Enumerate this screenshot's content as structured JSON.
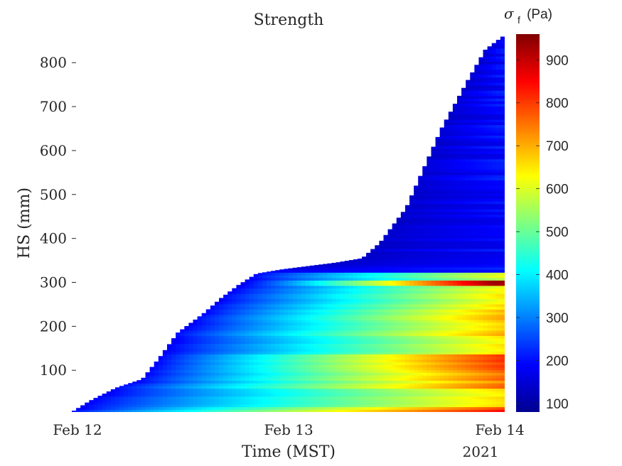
{
  "chart_data": {
    "type": "heatmap",
    "title": "Strength",
    "xlabel": "Time (MST)",
    "ylabel": "HS (mm)",
    "x_ticks": [
      "Feb 12",
      "Feb 13",
      "Feb 14"
    ],
    "x_secondary_label": "2021",
    "x_range_days": [
      0,
      2.05
    ],
    "ylim": [
      5,
      865
    ],
    "y_ticks": [
      100,
      200,
      300,
      400,
      500,
      600,
      700,
      800
    ],
    "colorbar": {
      "label_symbol": "σ",
      "label_subscript": "f",
      "label_units": "(Pa)",
      "range": [
        80,
        960
      ],
      "ticks": [
        100,
        200,
        300,
        400,
        500,
        600,
        700,
        800,
        900
      ],
      "colormap": "jet"
    },
    "snow_height_profile": [
      {
        "t": "Feb 12 00:00",
        "hs": 5
      },
      {
        "t": "Feb 12 02:00",
        "hs": 30
      },
      {
        "t": "Feb 12 05:00",
        "hs": 60
      },
      {
        "t": "Feb 12 08:00",
        "hs": 80
      },
      {
        "t": "Feb 12 10:00",
        "hs": 130
      },
      {
        "t": "Feb 12 12:00",
        "hs": 185
      },
      {
        "t": "Feb 12 15:00",
        "hs": 230
      },
      {
        "t": "Feb 12 17:00",
        "hs": 265
      },
      {
        "t": "Feb 12 19:00",
        "hs": 295
      },
      {
        "t": "Feb 12 21:00",
        "hs": 320
      },
      {
        "t": "Feb 13 00:00",
        "hs": 330
      },
      {
        "t": "Feb 13 06:00",
        "hs": 345
      },
      {
        "t": "Feb 13 09:00",
        "hs": 355
      },
      {
        "t": "Feb 13 11:00",
        "hs": 390
      },
      {
        "t": "Feb 13 14:00",
        "hs": 470
      },
      {
        "t": "Feb 13 16:00",
        "hs": 560
      },
      {
        "t": "Feb 13 18:00",
        "hs": 650
      },
      {
        "t": "Feb 13 21:00",
        "hs": 760
      },
      {
        "t": "Feb 13 23:00",
        "hs": 830
      },
      {
        "t": "Feb 14 01:00",
        "hs": 860
      }
    ],
    "strength_layers_at_end": [
      {
        "hs": [
          5,
          20
        ],
        "sigma_f": 820
      },
      {
        "hs": [
          20,
          60
        ],
        "sigma_f": 660
      },
      {
        "hs": [
          60,
          100
        ],
        "sigma_f": 740
      },
      {
        "hs": [
          100,
          140
        ],
        "sigma_f": 800
      },
      {
        "hs": [
          140,
          180
        ],
        "sigma_f": 660
      },
      {
        "hs": [
          180,
          240
        ],
        "sigma_f": 680
      },
      {
        "hs": [
          240,
          295
        ],
        "sigma_f": 640
      },
      {
        "hs": [
          295,
          305
        ],
        "sigma_f": 950
      },
      {
        "hs": [
          305,
          325
        ],
        "sigma_f": 600
      },
      {
        "hs": [
          325,
          860
        ],
        "sigma_f": 200
      }
    ]
  }
}
